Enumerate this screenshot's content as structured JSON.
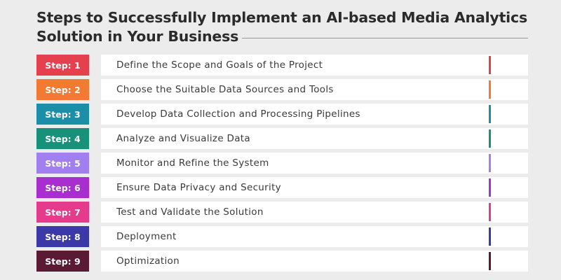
{
  "title": {
    "line1": "Steps to Successfully Implement an AI-based Media Analytics",
    "line2": "Solution in Your Business"
  },
  "steps": [
    {
      "label": "Step: 1",
      "text": "Define the Scope and Goals of the Project",
      "color": "#e5404d"
    },
    {
      "label": "Step: 2",
      "text": "Choose the Suitable Data Sources and Tools",
      "color": "#f37a33"
    },
    {
      "label": "Step: 3",
      "text": "Develop Data Collection and Processing Pipelines",
      "color": "#1c8ea7"
    },
    {
      "label": "Step: 4",
      "text": "Analyze and Visualize Data",
      "color": "#18917a"
    },
    {
      "label": "Step: 5",
      "text": "Monitor and Refine the System",
      "color": "#a27fee"
    },
    {
      "label": "Step: 6",
      "text": "Ensure Data Privacy and Security",
      "color": "#a82ed0"
    },
    {
      "label": "Step: 7",
      "text": "Test and Validate the Solution",
      "color": "#e53b8c"
    },
    {
      "label": "Step: 8",
      "text": "Deployment",
      "color": "#3b39a8"
    },
    {
      "label": "Step: 9",
      "text": "Optimization",
      "color": "#5b1a33"
    }
  ]
}
